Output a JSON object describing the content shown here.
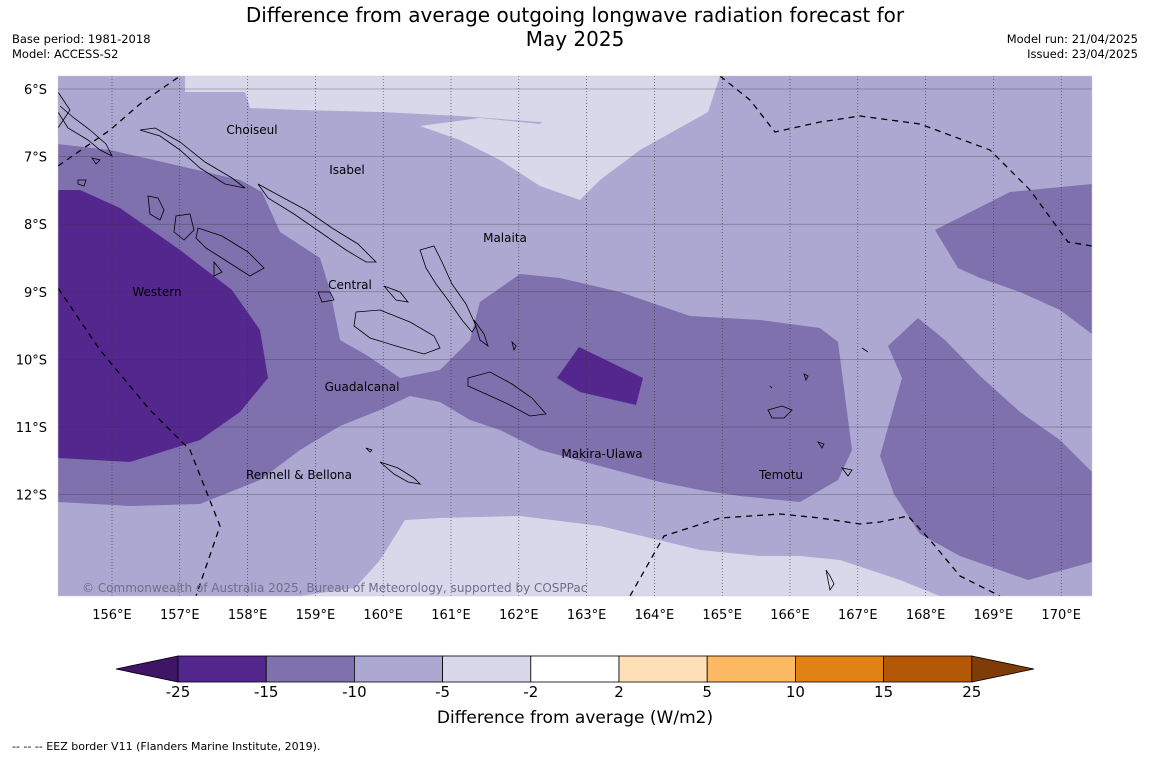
{
  "title_line1": "Difference from average outgoing longwave radiation forecast for",
  "title_line2": "May 2025",
  "base_period": "Base period: 1981-2018",
  "model": "Model: ACCESS-S2",
  "model_run": "Model run: 21/04/2025",
  "issued": "Issued: 23/04/2025",
  "copyright": "© Commonwealth of Australia 2025, Bureau of Meteorology, supported by COSPPac",
  "lat_labels": [
    "6°S",
    "7°S",
    "8°S",
    "9°S",
    "10°S",
    "11°S",
    "12°S"
  ],
  "lon_labels": [
    "156°E",
    "157°E",
    "158°E",
    "159°E",
    "160°E",
    "161°E",
    "162°E",
    "163°E",
    "164°E",
    "165°E",
    "166°E",
    "167°E",
    "168°E",
    "169°E",
    "170°E"
  ],
  "regions": [
    "Choiseul",
    "Isabel",
    "Malaita",
    "Western",
    "Central",
    "Guadalcanal",
    "Rennell & Bellona",
    "Makira-Ulawa",
    "Temotu"
  ],
  "colorbar": {
    "title": "Difference from average (W/m2)",
    "ticks": [
      "-25",
      "-15",
      "-10",
      "-5",
      "-2",
      "2",
      "5",
      "10",
      "15",
      "25"
    ],
    "colors": [
      "#3f1568",
      "#54278f",
      "#7e71ad",
      "#ada8d1",
      "#d9d8ea",
      "#ffffff",
      "#ffdfb5",
      "#fdb863",
      "#e08214",
      "#b35806",
      "#7f3b08"
    ]
  },
  "footnote": "--  --  -- EEZ border V11 (Flanders Marine Institute, 2019)."
}
